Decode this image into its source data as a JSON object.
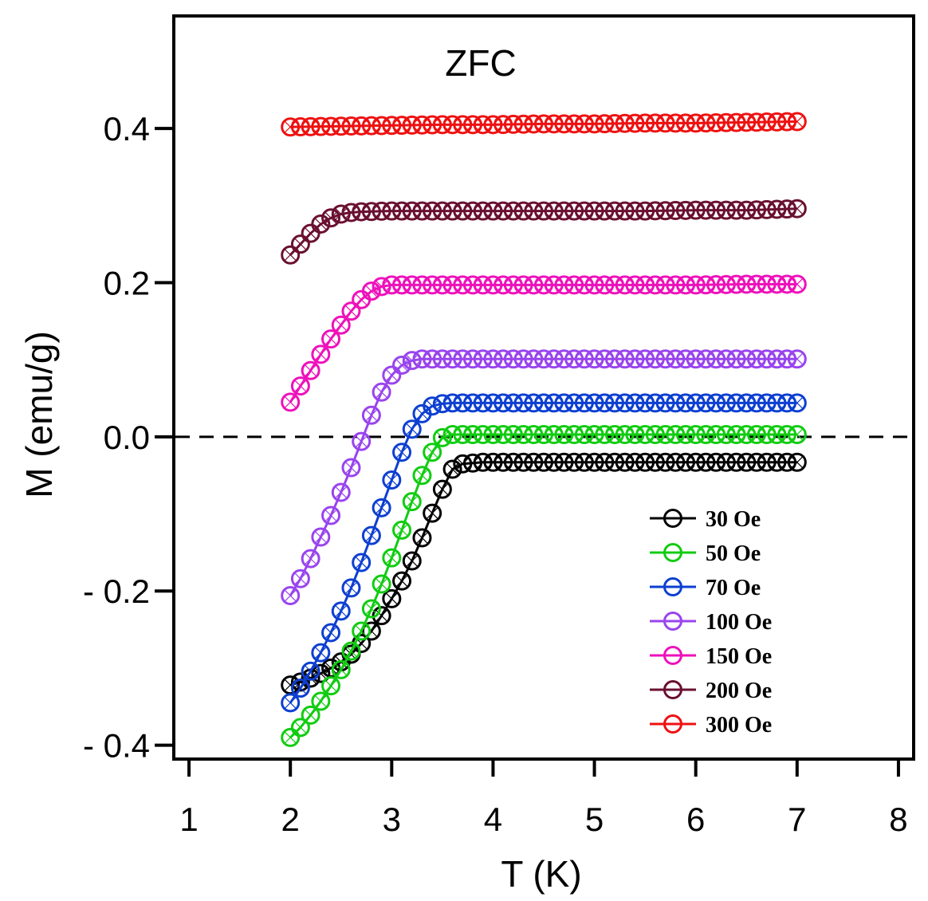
{
  "chart_data": {
    "type": "line",
    "annotation": "ZFC",
    "xlabel": "T (K)",
    "ylabel": "M (emu/g)",
    "xlim": [
      0.85,
      8.15
    ],
    "ylim": [
      -0.418,
      0.546
    ],
    "xticks": [
      1,
      2,
      3,
      4,
      5,
      6,
      7,
      8
    ],
    "xtick_labels": [
      "1",
      "2",
      "3",
      "4",
      "5",
      "6",
      "7",
      "8"
    ],
    "yticks": [
      -0.4,
      -0.2,
      0.0,
      0.2,
      0.4
    ],
    "ytick_labels": [
      "- 0.4",
      "- 0.2",
      "0.0",
      "0.2",
      "0.4"
    ],
    "reference_line": {
      "y": 0.0,
      "style": "dashed"
    },
    "legend_position": "bottom-right",
    "marker": "open-circle",
    "series": [
      {
        "name": "30 Oe",
        "color": "#000000",
        "points": [
          [
            2.0,
            -0.322
          ],
          [
            2.1,
            -0.318
          ],
          [
            2.2,
            -0.313
          ],
          [
            2.3,
            -0.307
          ],
          [
            2.4,
            -0.3
          ],
          [
            2.5,
            -0.292
          ],
          [
            2.6,
            -0.282
          ],
          [
            2.7,
            -0.268
          ],
          [
            2.8,
            -0.252
          ],
          [
            2.9,
            -0.232
          ],
          [
            3.0,
            -0.21
          ],
          [
            3.1,
            -0.187
          ],
          [
            3.2,
            -0.161
          ],
          [
            3.3,
            -0.131
          ],
          [
            3.4,
            -0.099
          ],
          [
            3.5,
            -0.068
          ],
          [
            3.6,
            -0.042
          ],
          [
            3.7,
            -0.035
          ],
          [
            3.8,
            -0.034
          ],
          [
            3.9,
            -0.033
          ],
          [
            4.0,
            -0.033
          ],
          [
            4.5,
            -0.033
          ],
          [
            5.0,
            -0.033
          ],
          [
            5.5,
            -0.033
          ],
          [
            6.0,
            -0.033
          ],
          [
            6.5,
            -0.033
          ],
          [
            7.0,
            -0.033
          ]
        ]
      },
      {
        "name": "50 Oe",
        "color": "#11cc11",
        "points": [
          [
            2.0,
            -0.39
          ],
          [
            2.1,
            -0.377
          ],
          [
            2.2,
            -0.361
          ],
          [
            2.3,
            -0.343
          ],
          [
            2.4,
            -0.323
          ],
          [
            2.5,
            -0.302
          ],
          [
            2.6,
            -0.278
          ],
          [
            2.7,
            -0.252
          ],
          [
            2.8,
            -0.223
          ],
          [
            2.9,
            -0.191
          ],
          [
            3.0,
            -0.157
          ],
          [
            3.1,
            -0.121
          ],
          [
            3.2,
            -0.084
          ],
          [
            3.3,
            -0.05
          ],
          [
            3.4,
            -0.02
          ],
          [
            3.5,
            -0.001
          ],
          [
            3.6,
            0.003
          ],
          [
            3.7,
            0.003
          ],
          [
            4.0,
            0.003
          ],
          [
            4.5,
            0.003
          ],
          [
            5.0,
            0.003
          ],
          [
            5.5,
            0.003
          ],
          [
            6.0,
            0.003
          ],
          [
            6.5,
            0.003
          ],
          [
            7.0,
            0.003
          ]
        ]
      },
      {
        "name": "70 Oe",
        "color": "#0d3fd1",
        "points": [
          [
            2.0,
            -0.345
          ],
          [
            2.1,
            -0.326
          ],
          [
            2.2,
            -0.304
          ],
          [
            2.3,
            -0.28
          ],
          [
            2.4,
            -0.254
          ],
          [
            2.5,
            -0.226
          ],
          [
            2.6,
            -0.196
          ],
          [
            2.7,
            -0.163
          ],
          [
            2.8,
            -0.128
          ],
          [
            2.9,
            -0.092
          ],
          [
            3.0,
            -0.056
          ],
          [
            3.1,
            -0.02
          ],
          [
            3.2,
            0.01
          ],
          [
            3.3,
            0.03
          ],
          [
            3.4,
            0.04
          ],
          [
            3.5,
            0.043
          ],
          [
            3.6,
            0.044
          ],
          [
            4.0,
            0.044
          ],
          [
            4.5,
            0.044
          ],
          [
            5.0,
            0.044
          ],
          [
            5.5,
            0.044
          ],
          [
            6.0,
            0.044
          ],
          [
            6.5,
            0.044
          ],
          [
            7.0,
            0.044
          ]
        ]
      },
      {
        "name": "100 Oe",
        "color": "#9944ee",
        "points": [
          [
            2.0,
            -0.206
          ],
          [
            2.1,
            -0.184
          ],
          [
            2.2,
            -0.158
          ],
          [
            2.3,
            -0.13
          ],
          [
            2.4,
            -0.102
          ],
          [
            2.5,
            -0.072
          ],
          [
            2.6,
            -0.04
          ],
          [
            2.7,
            -0.006
          ],
          [
            2.8,
            0.028
          ],
          [
            2.9,
            0.058
          ],
          [
            3.0,
            0.08
          ],
          [
            3.1,
            0.093
          ],
          [
            3.2,
            0.099
          ],
          [
            3.3,
            0.101
          ],
          [
            3.5,
            0.101
          ],
          [
            4.0,
            0.101
          ],
          [
            4.5,
            0.101
          ],
          [
            5.0,
            0.101
          ],
          [
            5.5,
            0.101
          ],
          [
            6.0,
            0.101
          ],
          [
            6.5,
            0.101
          ],
          [
            7.0,
            0.101
          ]
        ]
      },
      {
        "name": "150 Oe",
        "color": "#ee11bb",
        "points": [
          [
            2.0,
            0.045
          ],
          [
            2.1,
            0.066
          ],
          [
            2.2,
            0.086
          ],
          [
            2.3,
            0.107
          ],
          [
            2.4,
            0.127
          ],
          [
            2.5,
            0.145
          ],
          [
            2.6,
            0.163
          ],
          [
            2.7,
            0.178
          ],
          [
            2.8,
            0.189
          ],
          [
            2.9,
            0.195
          ],
          [
            3.0,
            0.197
          ],
          [
            3.5,
            0.197
          ],
          [
            4.0,
            0.197
          ],
          [
            4.5,
            0.197
          ],
          [
            5.0,
            0.197
          ],
          [
            5.5,
            0.197
          ],
          [
            6.0,
            0.197
          ],
          [
            6.5,
            0.198
          ],
          [
            7.0,
            0.198
          ]
        ]
      },
      {
        "name": "200 Oe",
        "color": "#6a1030",
        "points": [
          [
            2.0,
            0.236
          ],
          [
            2.1,
            0.25
          ],
          [
            2.2,
            0.264
          ],
          [
            2.3,
            0.276
          ],
          [
            2.4,
            0.284
          ],
          [
            2.5,
            0.289
          ],
          [
            2.6,
            0.291
          ],
          [
            2.7,
            0.292
          ],
          [
            3.0,
            0.293
          ],
          [
            3.5,
            0.293
          ],
          [
            4.0,
            0.293
          ],
          [
            4.5,
            0.293
          ],
          [
            5.0,
            0.293
          ],
          [
            5.5,
            0.293
          ],
          [
            6.0,
            0.294
          ],
          [
            6.5,
            0.294
          ],
          [
            7.0,
            0.296
          ]
        ]
      },
      {
        "name": "300 Oe",
        "color": "#ee1111",
        "points": [
          [
            2.0,
            0.402
          ],
          [
            2.5,
            0.403
          ],
          [
            3.0,
            0.404
          ],
          [
            3.5,
            0.405
          ],
          [
            4.0,
            0.405
          ],
          [
            4.5,
            0.406
          ],
          [
            5.0,
            0.406
          ],
          [
            5.5,
            0.407
          ],
          [
            6.0,
            0.407
          ],
          [
            6.5,
            0.408
          ],
          [
            7.0,
            0.409
          ]
        ]
      }
    ]
  }
}
